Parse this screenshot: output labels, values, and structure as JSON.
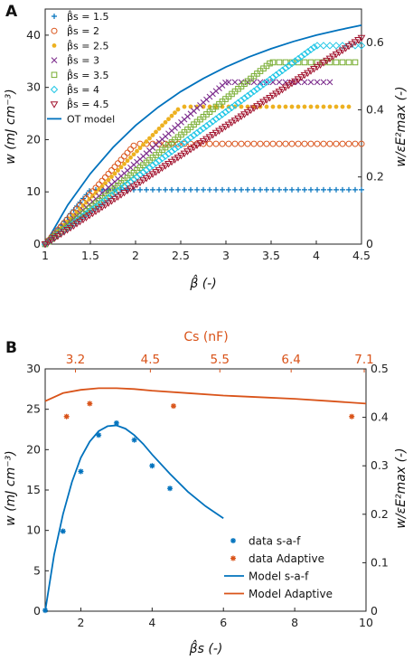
{
  "chart_data": [
    {
      "panel": "A",
      "type": "scatter",
      "xlabel": "β̂ (-)",
      "ylabel": "w (mJ cm⁻³)",
      "ylabel_right": "w/εE²max (-)",
      "xlim": [
        1,
        4.5
      ],
      "ylim": [
        0,
        45
      ],
      "ylim_right": [
        0,
        0.7
      ],
      "xticks": [
        "1",
        "1.5",
        "2",
        "2.5",
        "3",
        "3.5",
        "4",
        "4.5"
      ],
      "yticks": [
        "0",
        "10",
        "20",
        "30",
        "40"
      ],
      "yticks_right": [
        "0",
        "0.2",
        "0.4",
        "0.6"
      ],
      "grid": false,
      "legend_position": "top-left",
      "series": [
        {
          "name": "β̂s = 1.5",
          "marker": "plus",
          "color": "#0072BD",
          "sat_x": 1.5,
          "plateau": 10.4,
          "x_end": 4.5
        },
        {
          "name": "β̂s = 2",
          "marker": "circle",
          "color": "#D95319",
          "sat_x": 2.0,
          "plateau": 19.2,
          "x_end": 4.5
        },
        {
          "name": "β̂s = 2.5",
          "marker": "dot",
          "color": "#EDB120",
          "sat_x": 2.5,
          "plateau": 26.3,
          "x_end": 4.4
        },
        {
          "name": "β̂s = 3",
          "marker": "cross",
          "color": "#7E2F8E",
          "sat_x": 3.0,
          "plateau": 31.0,
          "x_end": 4.2
        },
        {
          "name": "β̂s = 3.5",
          "marker": "square",
          "color": "#77AC30",
          "sat_x": 3.5,
          "plateau": 34.8,
          "x_end": 4.45
        },
        {
          "name": "β̂s = 4",
          "marker": "diamond",
          "color": "#20C6E6",
          "sat_x": 4.0,
          "plateau": 38.0,
          "x_end": 4.5
        },
        {
          "name": "β̂s = 4.5",
          "marker": "triangle-down",
          "color": "#A2142F",
          "sat_x": 4.5,
          "plateau": 39.5,
          "x_end": 4.5
        }
      ],
      "model": {
        "name": "OT model",
        "color": "#0072BD",
        "x": [
          1,
          1.25,
          1.5,
          1.75,
          2,
          2.25,
          2.5,
          2.75,
          3,
          3.25,
          3.5,
          3.75,
          4,
          4.25,
          4.5
        ],
        "y": [
          0,
          7.5,
          13.5,
          18.5,
          22.7,
          26.2,
          29.2,
          31.7,
          33.9,
          35.8,
          37.4,
          38.8,
          40.0,
          41.0,
          41.9
        ]
      }
    },
    {
      "panel": "B",
      "type": "line",
      "xlabel": "β̂s (-)",
      "xlabel_top": "Cs (nF)",
      "ylabel": "w (mJ cm⁻³)",
      "ylabel_right": "w/εE²max (-)",
      "xlim": [
        1,
        10
      ],
      "ylim": [
        0,
        30
      ],
      "ylim_right": [
        0,
        0.5
      ],
      "xticks": [
        "2",
        "4",
        "6",
        "8",
        "10"
      ],
      "yticks": [
        "0",
        "5",
        "10",
        "15",
        "20",
        "25",
        "30"
      ],
      "yticks_right": [
        "0",
        "0.1",
        "0.2",
        "0.3",
        "0.4",
        "0.5"
      ],
      "xticks_top": [
        "3.2",
        "4.5",
        "5.5",
        "6.4",
        "7.1"
      ],
      "xticks_top_pos_beta": [
        1.85,
        3.95,
        5.9,
        7.9,
        9.95
      ],
      "grid": false,
      "legend_position": "bottom-right",
      "series": [
        {
          "name": "data s-a-f",
          "kind": "points",
          "marker": "star",
          "color": "#0072BD",
          "x": [
            1.0,
            1.5,
            2.0,
            2.5,
            3.0,
            3.5,
            4.0,
            4.5
          ],
          "y": [
            0.1,
            9.9,
            17.3,
            21.8,
            23.3,
            21.2,
            18.0,
            15.2
          ]
        },
        {
          "name": "data Adaptive",
          "kind": "points",
          "marker": "star",
          "color": "#D95319",
          "x": [
            1.6,
            2.25,
            4.6,
            9.6
          ],
          "y": [
            24.1,
            25.7,
            25.4,
            24.1
          ]
        },
        {
          "name": "Model s-a-f",
          "kind": "line",
          "color": "#0072BD",
          "x": [
            1.0,
            1.25,
            1.5,
            1.75,
            2.0,
            2.25,
            2.5,
            2.75,
            3.0,
            3.25,
            3.5,
            3.75,
            4.0,
            4.5,
            5.0,
            5.5,
            6.0
          ],
          "y": [
            0.0,
            7.0,
            12.0,
            16.0,
            19.0,
            21.0,
            22.3,
            22.9,
            23.0,
            22.6,
            21.8,
            20.7,
            19.4,
            17.0,
            14.8,
            13.0,
            11.5
          ]
        },
        {
          "name": "Model Adaptive",
          "kind": "line",
          "color": "#D95319",
          "x": [
            1.0,
            1.5,
            2.0,
            2.5,
            3.0,
            3.5,
            4.0,
            5.0,
            6.0,
            7.0,
            8.0,
            9.0,
            10.0
          ],
          "y": [
            26.0,
            27.0,
            27.4,
            27.6,
            27.6,
            27.5,
            27.3,
            27.0,
            26.7,
            26.5,
            26.3,
            26.0,
            25.7
          ]
        }
      ]
    }
  ]
}
